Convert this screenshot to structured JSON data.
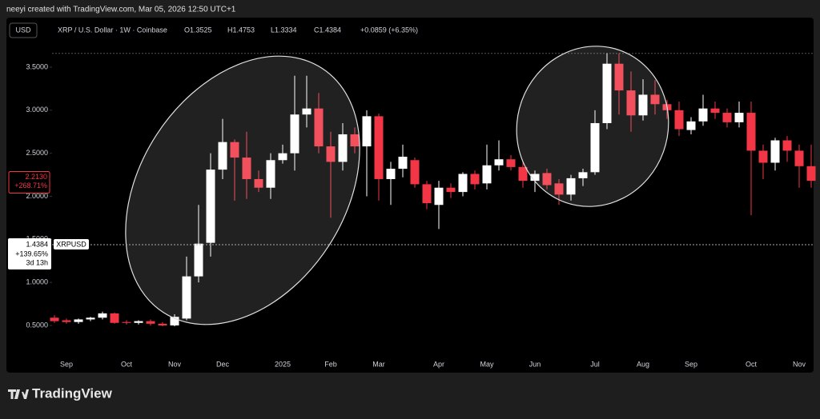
{
  "attribution": "neeyi created with TradingView.com, Mar 05, 2026 12:50 UTC+1",
  "footer_brand": "TradingView",
  "chart_data": {
    "type": "candlestick",
    "currency_button": "USD",
    "title": "XRP / U.S. Dollar · 1W · Coinbase",
    "header_ohlc": [
      "O1.3525",
      "H1.4753",
      "L1.3334",
      "C1.4384",
      "+0.0859 (+6.35%)"
    ],
    "up_color": "#ffffff",
    "down_color": "#f23645",
    "grid": false,
    "ylim": [
      0.1,
      4.0
    ],
    "yticks": [
      {
        "value": 0.5,
        "label": "0.5000"
      },
      {
        "value": 1.0,
        "label": "1.0000"
      },
      {
        "value": 1.5,
        "label": "1.5000"
      },
      {
        "value": 2.0,
        "label": "2.0000"
      },
      {
        "value": 2.5,
        "label": "2.5000"
      },
      {
        "value": 3.0,
        "label": "3.0000"
      },
      {
        "value": 3.5,
        "label": "3.5000"
      }
    ],
    "categories": [
      null,
      "Sep",
      null,
      null,
      null,
      null,
      "Oct",
      null,
      null,
      null,
      "Nov",
      null,
      null,
      null,
      "Dec",
      null,
      null,
      null,
      null,
      "2025",
      null,
      null,
      null,
      "Feb",
      null,
      null,
      null,
      "Mar",
      null,
      null,
      null,
      null,
      "Apr",
      null,
      null,
      null,
      "May",
      null,
      null,
      null,
      "Jun",
      null,
      null,
      null,
      null,
      "Jul",
      null,
      null,
      null,
      "Aug",
      null,
      null,
      null,
      "Sep",
      null,
      null,
      null,
      null,
      "Oct",
      null,
      null,
      null,
      "Nov",
      null
    ],
    "open": [
      0.59,
      0.56,
      0.54,
      0.57,
      0.59,
      0.64,
      0.54,
      0.53,
      0.55,
      0.52,
      0.5,
      0.58,
      1.07,
      1.46,
      2.31,
      2.63,
      2.45,
      2.2,
      2.1,
      2.42,
      2.5,
      2.95,
      3.02,
      2.58,
      2.4,
      2.72,
      2.58,
      2.93,
      2.2,
      2.32,
      2.42,
      2.14,
      1.9,
      2.1,
      2.05,
      2.26,
      2.15,
      2.36,
      2.43,
      2.34,
      2.18,
      2.27,
      2.15,
      2.02,
      2.21,
      2.28,
      2.85,
      3.54,
      3.23,
      2.94,
      3.18,
      3.07,
      3.0,
      2.77,
      2.87,
      3.02,
      2.97,
      2.86,
      2.97,
      2.53,
      2.39,
      2.65,
      2.53,
      2.35
    ],
    "high": [
      0.62,
      0.58,
      0.58,
      0.6,
      0.66,
      0.65,
      0.56,
      0.56,
      0.57,
      0.54,
      0.63,
      1.3,
      1.9,
      2.5,
      2.9,
      2.66,
      2.75,
      2.3,
      2.5,
      2.6,
      3.4,
      3.4,
      3.2,
      2.75,
      2.85,
      2.8,
      3.0,
      2.96,
      2.4,
      2.6,
      2.45,
      2.18,
      2.18,
      2.15,
      2.28,
      2.3,
      2.6,
      2.65,
      2.48,
      2.4,
      2.3,
      2.32,
      2.2,
      2.25,
      2.32,
      3.0,
      3.66,
      3.66,
      3.45,
      3.36,
      3.35,
      3.12,
      3.1,
      2.92,
      3.18,
      3.1,
      3.02,
      3.1,
      3.1,
      2.6,
      2.68,
      2.7,
      2.6,
      2.6
    ],
    "low": [
      0.53,
      0.52,
      0.52,
      0.55,
      0.57,
      0.52,
      0.51,
      0.51,
      0.5,
      0.49,
      0.49,
      0.56,
      1.0,
      1.3,
      2.2,
      1.95,
      1.97,
      2.05,
      1.97,
      2.38,
      2.3,
      2.8,
      2.5,
      1.75,
      2.3,
      2.5,
      2.0,
      1.95,
      1.9,
      2.22,
      2.1,
      1.85,
      1.62,
      1.98,
      2.0,
      2.08,
      2.08,
      2.3,
      2.3,
      2.1,
      2.05,
      2.08,
      1.9,
      1.95,
      2.12,
      2.25,
      2.78,
      2.95,
      2.75,
      2.88,
      2.95,
      2.9,
      2.7,
      2.72,
      2.82,
      2.9,
      2.8,
      2.8,
      1.78,
      2.2,
      2.3,
      2.4,
      2.1,
      2.1
    ],
    "close": [
      0.55,
      0.54,
      0.57,
      0.59,
      0.64,
      0.53,
      0.53,
      0.55,
      0.52,
      0.5,
      0.6,
      1.07,
      1.45,
      2.31,
      2.63,
      2.45,
      2.2,
      2.1,
      2.42,
      2.5,
      2.95,
      3.02,
      2.58,
      2.4,
      2.72,
      2.58,
      2.93,
      2.2,
      2.32,
      2.46,
      2.14,
      1.92,
      2.1,
      2.05,
      2.26,
      2.14,
      2.36,
      2.43,
      2.34,
      2.18,
      2.26,
      2.13,
      2.02,
      2.21,
      2.28,
      2.85,
      3.54,
      3.23,
      2.94,
      3.18,
      3.07,
      3.0,
      2.78,
      2.87,
      3.02,
      2.97,
      2.86,
      2.97,
      2.53,
      2.39,
      2.65,
      2.53,
      2.35,
      2.18
    ],
    "last_price": {
      "value": 1.4384,
      "change": "+139.65%",
      "countdown": "3d 13h",
      "symbol": "XRPUSD"
    },
    "crosshair": {
      "value": 2.213,
      "label": "2.2130",
      "change": "+268.71%"
    }
  }
}
